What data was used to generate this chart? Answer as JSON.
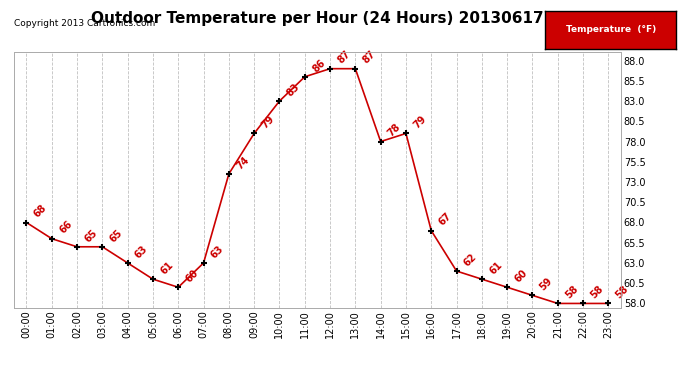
{
  "title": "Outdoor Temperature per Hour (24 Hours) 20130617",
  "copyright_text": "Copyright 2013 Cartronics.com",
  "legend_label": "Temperature  (°F)",
  "hours": [
    0,
    1,
    2,
    3,
    4,
    5,
    6,
    7,
    8,
    9,
    10,
    11,
    12,
    13,
    14,
    15,
    16,
    17,
    18,
    19,
    20,
    21,
    22,
    23
  ],
  "temps": [
    68,
    66,
    65,
    65,
    63,
    61,
    60,
    63,
    74,
    79,
    83,
    86,
    87,
    87,
    78,
    79,
    67,
    62,
    61,
    60,
    59,
    58,
    58,
    58
  ],
  "xlabels": [
    "00:00",
    "01:00",
    "02:00",
    "03:00",
    "04:00",
    "05:00",
    "06:00",
    "07:00",
    "08:00",
    "09:00",
    "10:00",
    "11:00",
    "12:00",
    "13:00",
    "14:00",
    "15:00",
    "16:00",
    "17:00",
    "18:00",
    "19:00",
    "20:00",
    "21:00",
    "22:00",
    "23:00"
  ],
  "ylim": [
    57.5,
    89.0
  ],
  "yticks": [
    58.0,
    60.5,
    63.0,
    65.5,
    68.0,
    70.5,
    73.0,
    75.5,
    78.0,
    80.5,
    83.0,
    85.5,
    88.0
  ],
  "line_color": "#cc0000",
  "marker_color": "#000000",
  "label_color": "#cc0000",
  "background_color": "#ffffff",
  "grid_color": "#c0c0c0",
  "title_fontsize": 11,
  "label_fontsize": 7,
  "tick_fontsize": 7,
  "copyright_fontsize": 6.5,
  "legend_bg": "#cc0000",
  "legend_fg": "#ffffff"
}
